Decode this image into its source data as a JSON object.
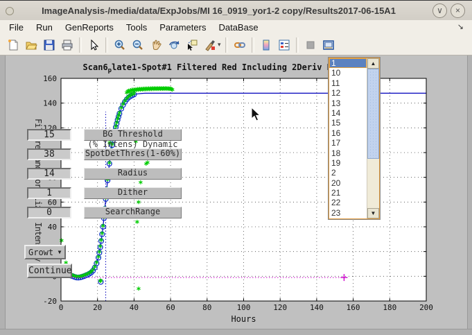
{
  "window": {
    "title": "ImageAnalysis-/media/data/ExpJobs/MI 16_0919_yor1-2 copy/Results2017-06-15A1",
    "minimize_glyph": "∨",
    "close_glyph": "×"
  },
  "menu_items": [
    "File",
    "Run",
    "GenReports",
    "Tools",
    "Parameters",
    "DataBase"
  ],
  "menu_overflow_glyph": "↘",
  "toolbar_icons": [
    "new-document-icon",
    "open-folder-icon",
    "save-icon",
    "print-icon",
    "arrow-pointer-icon",
    "zoom-in-icon",
    "zoom-out-icon",
    "pan-hand-icon",
    "rotate-3d-icon",
    "data-cursor-icon",
    "brush-icon",
    "brush-dropdown-caret",
    "link-plots-icon",
    "colorbar-icon",
    "legend-icon",
    "disabled-icon",
    "dock-figure-icon"
  ],
  "controls": {
    "rows": [
      {
        "value": "15",
        "label": "BG Threshold"
      },
      {
        "value": "38",
        "label": "SpotDetThres(1-60%)"
      },
      {
        "value": "14",
        "label": "Radius"
      },
      {
        "value": "1",
        "label": "Dither"
      },
      {
        "value": "0",
        "label": "SearchRange"
      }
    ],
    "occluded_text": "(% Intens) Dynamic",
    "growth_dropdown_label": "Growt...",
    "growth_dropdown_arrow": "▼",
    "continue_button_label": "Continue"
  },
  "listbox": {
    "items": [
      "1",
      "10",
      "11",
      "12",
      "13",
      "14",
      "15",
      "16",
      "17",
      "18",
      "19",
      "2",
      "20",
      "21",
      "22",
      "23"
    ],
    "selected_index": 0,
    "up_arrow_glyph": "▲",
    "down_arrow_glyph": "▼"
  },
  "chart_data": {
    "type": "line",
    "title_parts": {
      "prefix": "Scan6",
      "subscript": "p",
      "rest": "late1-Spot#1 Filtered Red Including 2Deriv Blu"
    },
    "xlabel": "Hours",
    "ylabel": "Filtered and Normalized Intensity",
    "xlim": [
      0,
      200
    ],
    "ylim": [
      -20,
      160
    ],
    "xticks": [
      0,
      20,
      40,
      60,
      80,
      100,
      120,
      140,
      160,
      180,
      200
    ],
    "yticks": [
      -20,
      0,
      20,
      40,
      60,
      80,
      100,
      120,
      140,
      160
    ],
    "grid": true,
    "colors": {
      "curve": "#0000bb",
      "markers": "#1133cc",
      "asterisks": "#00cc00",
      "baseline": "#cc00cc",
      "axis": "#000000"
    },
    "series": [
      {
        "name": "growth-fit-curve",
        "type": "line",
        "points": [
          [
            4.5,
            1
          ],
          [
            5.5,
            0.5
          ],
          [
            6.5,
            0
          ],
          [
            7.5,
            -0.6
          ],
          [
            8.5,
            -1
          ],
          [
            9.5,
            -1.1
          ],
          [
            10.5,
            -0.9
          ],
          [
            11.5,
            -0.5
          ],
          [
            12.5,
            0
          ],
          [
            13.5,
            0.6
          ],
          [
            14.5,
            1.2
          ],
          [
            15.5,
            2
          ],
          [
            16.5,
            3
          ],
          [
            17.5,
            4.5
          ],
          [
            18.5,
            7
          ],
          [
            19.5,
            10.5
          ],
          [
            20.5,
            15
          ],
          [
            21,
            19
          ],
          [
            21.5,
            23.5
          ],
          [
            22,
            28.5
          ],
          [
            22.5,
            34
          ],
          [
            23,
            40
          ],
          [
            23.5,
            47
          ],
          [
            24,
            54.5
          ],
          [
            24.5,
            62.5
          ],
          [
            25,
            70
          ],
          [
            25.5,
            77.5
          ],
          [
            26,
            84.5
          ],
          [
            26.5,
            91
          ],
          [
            27,
            96.5
          ],
          [
            27.5,
            101.5
          ],
          [
            28,
            106
          ],
          [
            28.5,
            110
          ],
          [
            29,
            114
          ],
          [
            29.5,
            117.5
          ],
          [
            30,
            120.5
          ],
          [
            30.5,
            123.5
          ],
          [
            31,
            126.5
          ],
          [
            31.5,
            129
          ],
          [
            32,
            131.5
          ],
          [
            33,
            135.5
          ],
          [
            34,
            138.5
          ],
          [
            35,
            141
          ],
          [
            36,
            143
          ],
          [
            37,
            144.5
          ],
          [
            38,
            145.5
          ],
          [
            39,
            146.3
          ],
          [
            40,
            147
          ],
          [
            42,
            147.5
          ],
          [
            44,
            147.8
          ],
          [
            46,
            148
          ],
          [
            50,
            148
          ],
          [
            200,
            148
          ]
        ],
        "circle_markers_through_x": 40,
        "outlier_circles": [
          [
            21.8,
            -4.5
          ]
        ]
      },
      {
        "name": "green-asterisk-cloud",
        "type": "scatter",
        "points": [
          [
            36,
            148.5
          ],
          [
            36.5,
            149.5
          ],
          [
            37,
            150
          ],
          [
            37.5,
            149
          ],
          [
            38,
            150.5
          ],
          [
            38.5,
            149.8
          ],
          [
            39,
            150.9
          ],
          [
            39.5,
            150.2
          ],
          [
            40,
            151
          ],
          [
            40.5,
            150.4
          ],
          [
            41,
            151.2
          ],
          [
            41.5,
            150.6
          ],
          [
            42,
            151.4
          ],
          [
            42.5,
            150.8
          ],
          [
            43,
            151.5
          ],
          [
            43.5,
            150.9
          ],
          [
            44,
            151.6
          ],
          [
            44.5,
            151
          ],
          [
            45,
            151.7
          ],
          [
            45.5,
            151.1
          ],
          [
            46,
            151.8
          ],
          [
            46.5,
            151.2
          ],
          [
            47,
            151.8
          ],
          [
            47.5,
            151.3
          ],
          [
            48,
            151.9
          ],
          [
            48.5,
            151.3
          ],
          [
            49,
            151.9
          ],
          [
            49.5,
            151.4
          ],
          [
            50,
            152
          ],
          [
            50.5,
            151.4
          ],
          [
            51,
            152
          ],
          [
            51.5,
            151.5
          ],
          [
            52,
            152
          ],
          [
            52.5,
            151.5
          ],
          [
            53,
            152
          ],
          [
            53.5,
            151.5
          ],
          [
            54,
            152
          ],
          [
            54.5,
            151.6
          ],
          [
            55,
            152
          ],
          [
            55.5,
            151.6
          ],
          [
            56,
            152
          ],
          [
            56.5,
            151.6
          ],
          [
            57,
            152
          ],
          [
            57.5,
            151.7
          ],
          [
            58,
            151.9
          ],
          [
            58.5,
            151.7
          ],
          [
            59,
            151.8
          ],
          [
            59.5,
            151.6
          ],
          [
            60,
            151.8
          ],
          [
            60.5,
            151.3
          ],
          [
            61,
            150.9
          ],
          [
            21.5,
            -3.5
          ]
        ]
      },
      {
        "name": "stray-green-asterisks",
        "type": "scatter",
        "points": [
          [
            0.3,
            29
          ],
          [
            2.7,
            11
          ],
          [
            26.6,
            108
          ],
          [
            41,
            109
          ],
          [
            46.6,
            91
          ],
          [
            47.4,
            92
          ],
          [
            43.6,
            76
          ],
          [
            42.5,
            60
          ],
          [
            41.7,
            44
          ],
          [
            42.5,
            -10
          ]
        ]
      },
      {
        "name": "baseline-threshold-line",
        "type": "hline_dotted",
        "y": -1,
        "x1": 0,
        "x2": 155,
        "end_marker": "plus"
      },
      {
        "name": "detection-time-vline",
        "type": "vline_dotted",
        "x": 24.5,
        "y1": -20,
        "y2": 133
      }
    ]
  }
}
